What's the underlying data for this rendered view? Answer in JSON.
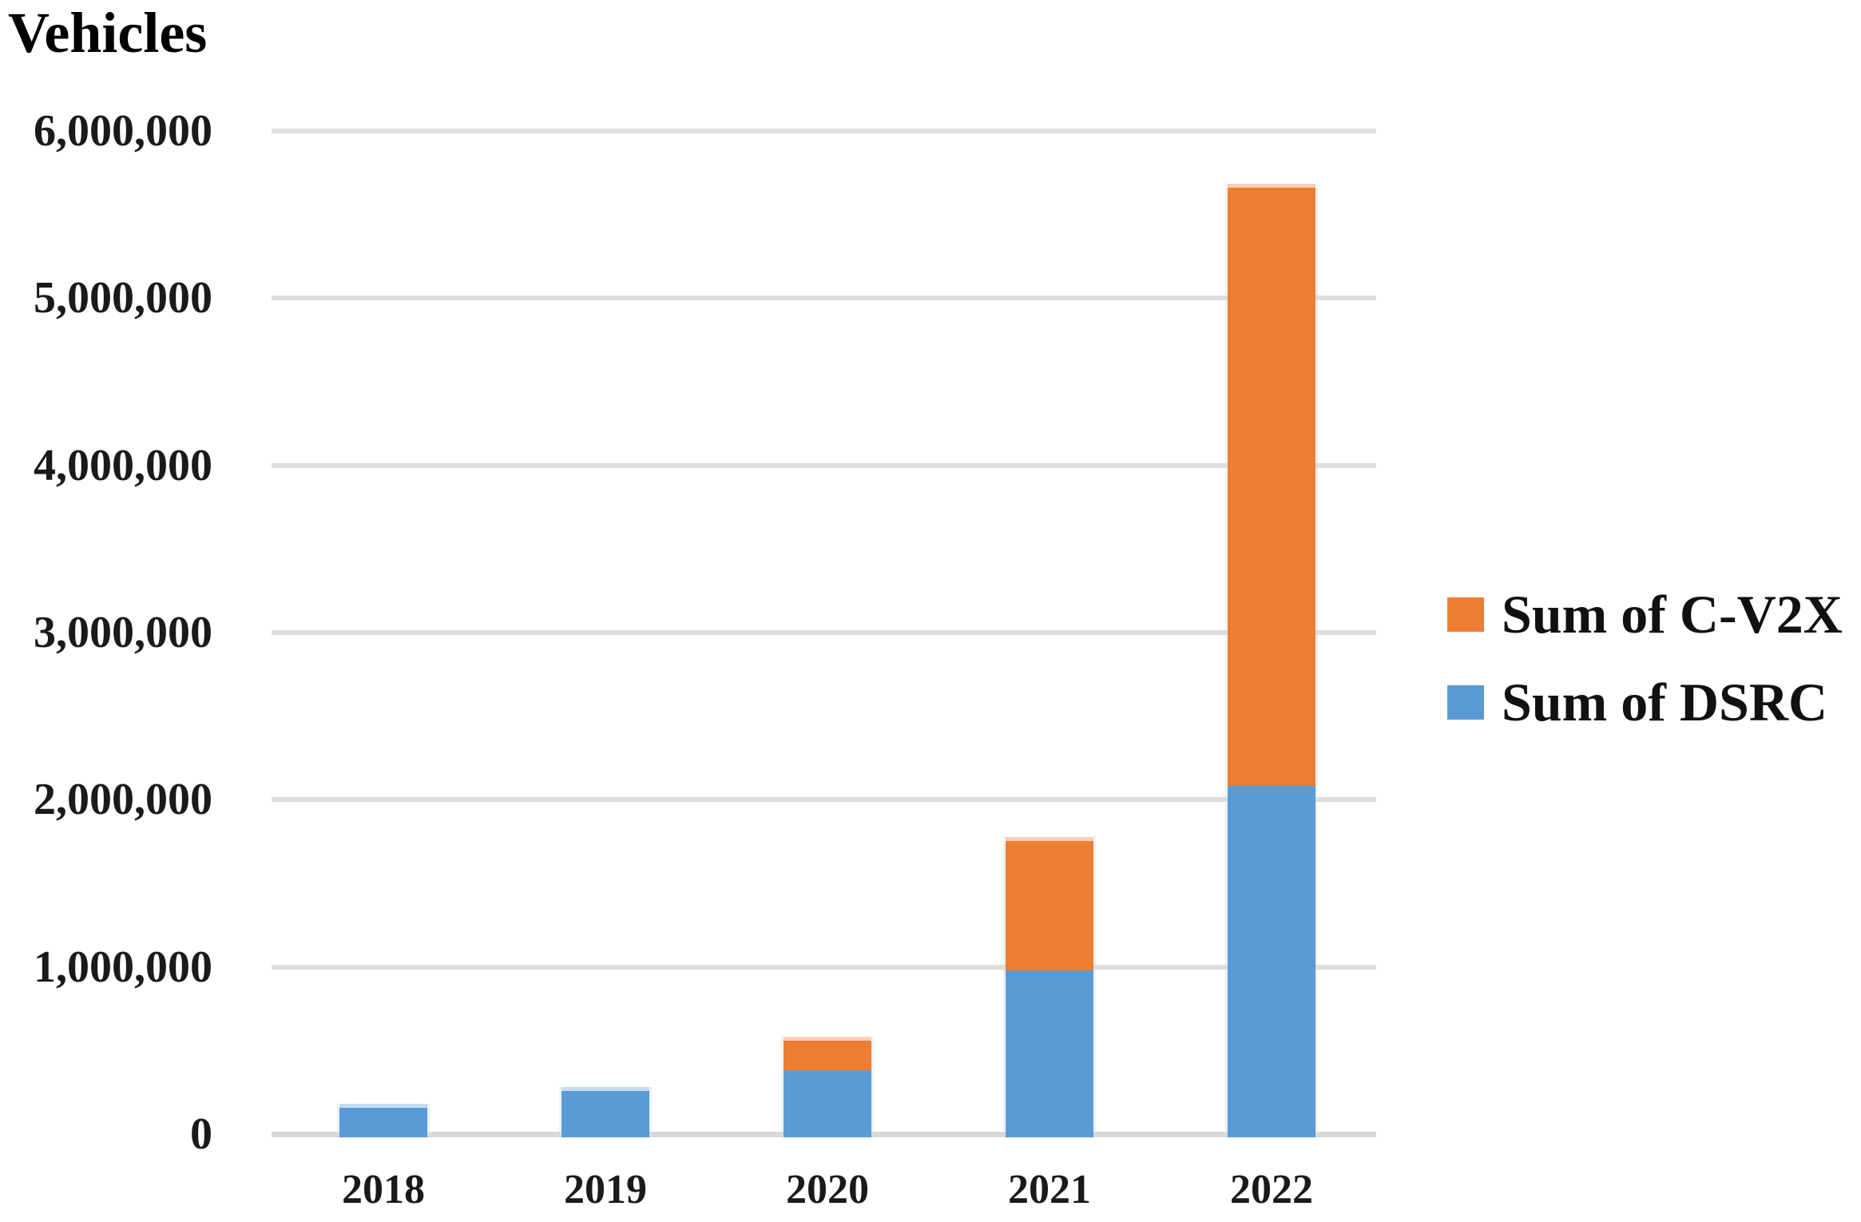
{
  "page": {
    "background": "#ffffff"
  },
  "chart_data": {
    "type": "bar",
    "stacked": true,
    "title": "Vehicles",
    "xlabel": "",
    "ylabel": "Vehicles",
    "categories": [
      "2018",
      "2019",
      "2020",
      "2021",
      "2022"
    ],
    "series": [
      {
        "name": "Sum of DSRC",
        "color": "#5B9BD5",
        "values": [
          200000,
          300000,
          400000,
          1000000,
          2100000
        ]
      },
      {
        "name": "Sum of C-V2X",
        "color": "#ED7D31",
        "values": [
          0,
          0,
          200000,
          800000,
          3600000
        ]
      }
    ],
    "totals": [
      200000,
      300000,
      600000,
      1800000,
      5700000
    ],
    "ylim": [
      0,
      6000000
    ],
    "yticks": [
      {
        "value": 0,
        "label": "0"
      },
      {
        "value": 1000000,
        "label": "1,000,000"
      },
      {
        "value": 2000000,
        "label": "2,000,000"
      },
      {
        "value": 3000000,
        "label": "3,000,000"
      },
      {
        "value": 4000000,
        "label": "4,000,000"
      },
      {
        "value": 5000000,
        "label": "5,000,000"
      },
      {
        "value": 6000000,
        "label": "6,000,000"
      }
    ],
    "grid": {
      "horizontal": true,
      "color": "#DEDEDE"
    },
    "legend": {
      "position": "right",
      "entries": [
        {
          "label": "Sum of C-V2X",
          "color": "#ED7D31"
        },
        {
          "label": "Sum of DSRC",
          "color": "#5B9BD5"
        }
      ]
    }
  }
}
